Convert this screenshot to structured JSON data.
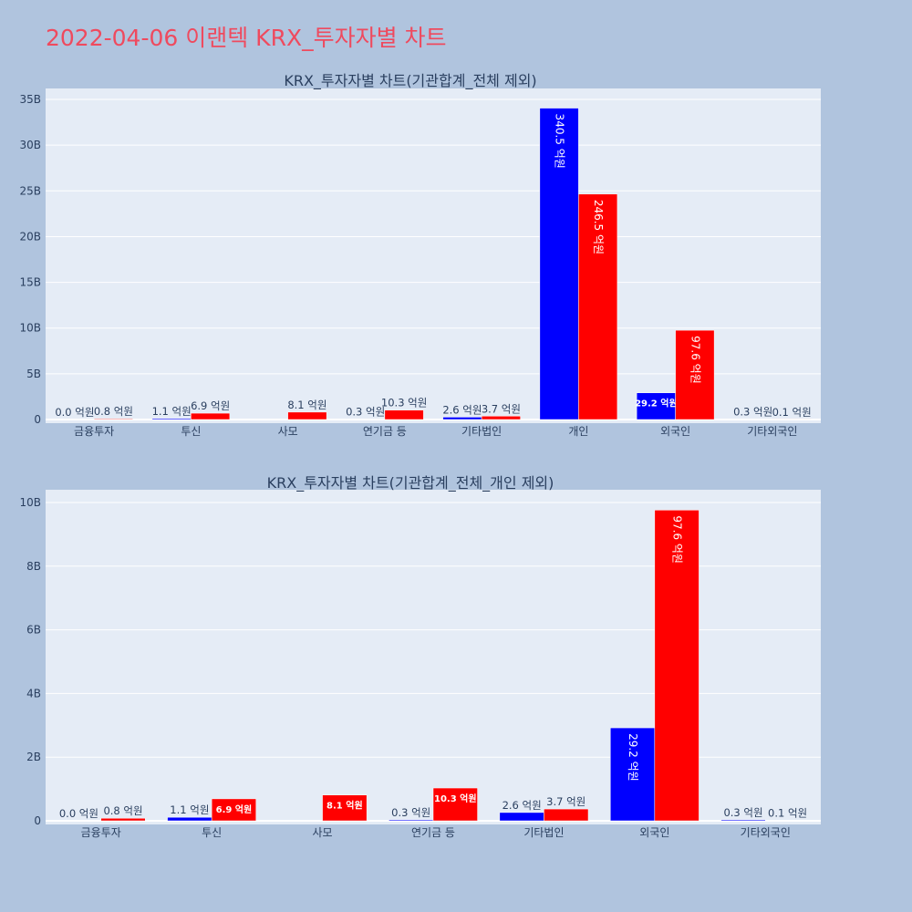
{
  "page_title": "2022-04-06 이랜텍 KRX_투자자별 차트",
  "colors": {
    "sell": "#0000ff",
    "buy": "#ff0000",
    "plot_bg": "#e5ecf6",
    "page_bg": "#b0c4de"
  },
  "chart_data": [
    {
      "type": "bar",
      "title": "KRX_투자자별 차트(기관합계_전체 제외)",
      "xlabel": "",
      "ylabel": "",
      "ylim": [
        0,
        36200000000
      ],
      "yticks": [
        0,
        5000000000,
        10000000000,
        15000000000,
        20000000000,
        25000000000,
        30000000000,
        35000000000
      ],
      "ytick_labels": [
        "0",
        "5B",
        "10B",
        "15B",
        "20B",
        "25B",
        "30B",
        "35B"
      ],
      "grid": true,
      "legend": "none",
      "categories": [
        "금융투자",
        "투신",
        "사모",
        "연기금 등",
        "기타법인",
        "개인",
        "외국인",
        "기타외국인"
      ],
      "series": [
        {
          "color": "#0000ff",
          "values": [
            0,
            110000000,
            0,
            30000000,
            260000000,
            34050000000,
            2920000000,
            30000000
          ],
          "labels": [
            "0.0 억원",
            "1.1 억원",
            "",
            "0.3 억원",
            "2.6 억원",
            "340.5 억원",
            "29.2 억원",
            "0.3 억원"
          ]
        },
        {
          "color": "#ff0000",
          "values": [
            80000000,
            690000000,
            810000000,
            1030000000,
            370000000,
            24650000000,
            9760000000,
            10000000
          ],
          "labels": [
            "0.8 억원",
            "6.9 억원",
            "8.1 억원",
            "10.3 억원",
            "3.7 억원",
            "246.5 억원",
            "97.6 억원",
            "0.1 억원"
          ]
        }
      ]
    },
    {
      "type": "bar",
      "title": "KRX_투자자별 차트(기관합계_전체_개인 제외)",
      "xlabel": "",
      "ylabel": "",
      "ylim": [
        0,
        10400000000
      ],
      "yticks": [
        0,
        2000000000,
        4000000000,
        6000000000,
        8000000000,
        10000000000
      ],
      "ytick_labels": [
        "0",
        "2B",
        "4B",
        "6B",
        "8B",
        "10B"
      ],
      "grid": true,
      "legend": "none",
      "categories": [
        "금융투자",
        "투신",
        "사모",
        "연기금 등",
        "기타법인",
        "외국인",
        "기타외국인"
      ],
      "series": [
        {
          "color": "#0000ff",
          "values": [
            0,
            110000000,
            0,
            30000000,
            260000000,
            2920000000,
            30000000
          ],
          "labels": [
            "0.0 억원",
            "1.1 억원",
            "",
            "0.3 억원",
            "2.6 억원",
            "29.2 억원",
            "0.3 억원"
          ]
        },
        {
          "color": "#ff0000",
          "values": [
            80000000,
            690000000,
            810000000,
            1030000000,
            370000000,
            9760000000,
            10000000
          ],
          "labels": [
            "0.8 억원",
            "6.9 억원",
            "8.1 억원",
            "10.3 억원",
            "3.7 억원",
            "97.6 억원",
            "0.1 억원"
          ]
        }
      ]
    }
  ]
}
